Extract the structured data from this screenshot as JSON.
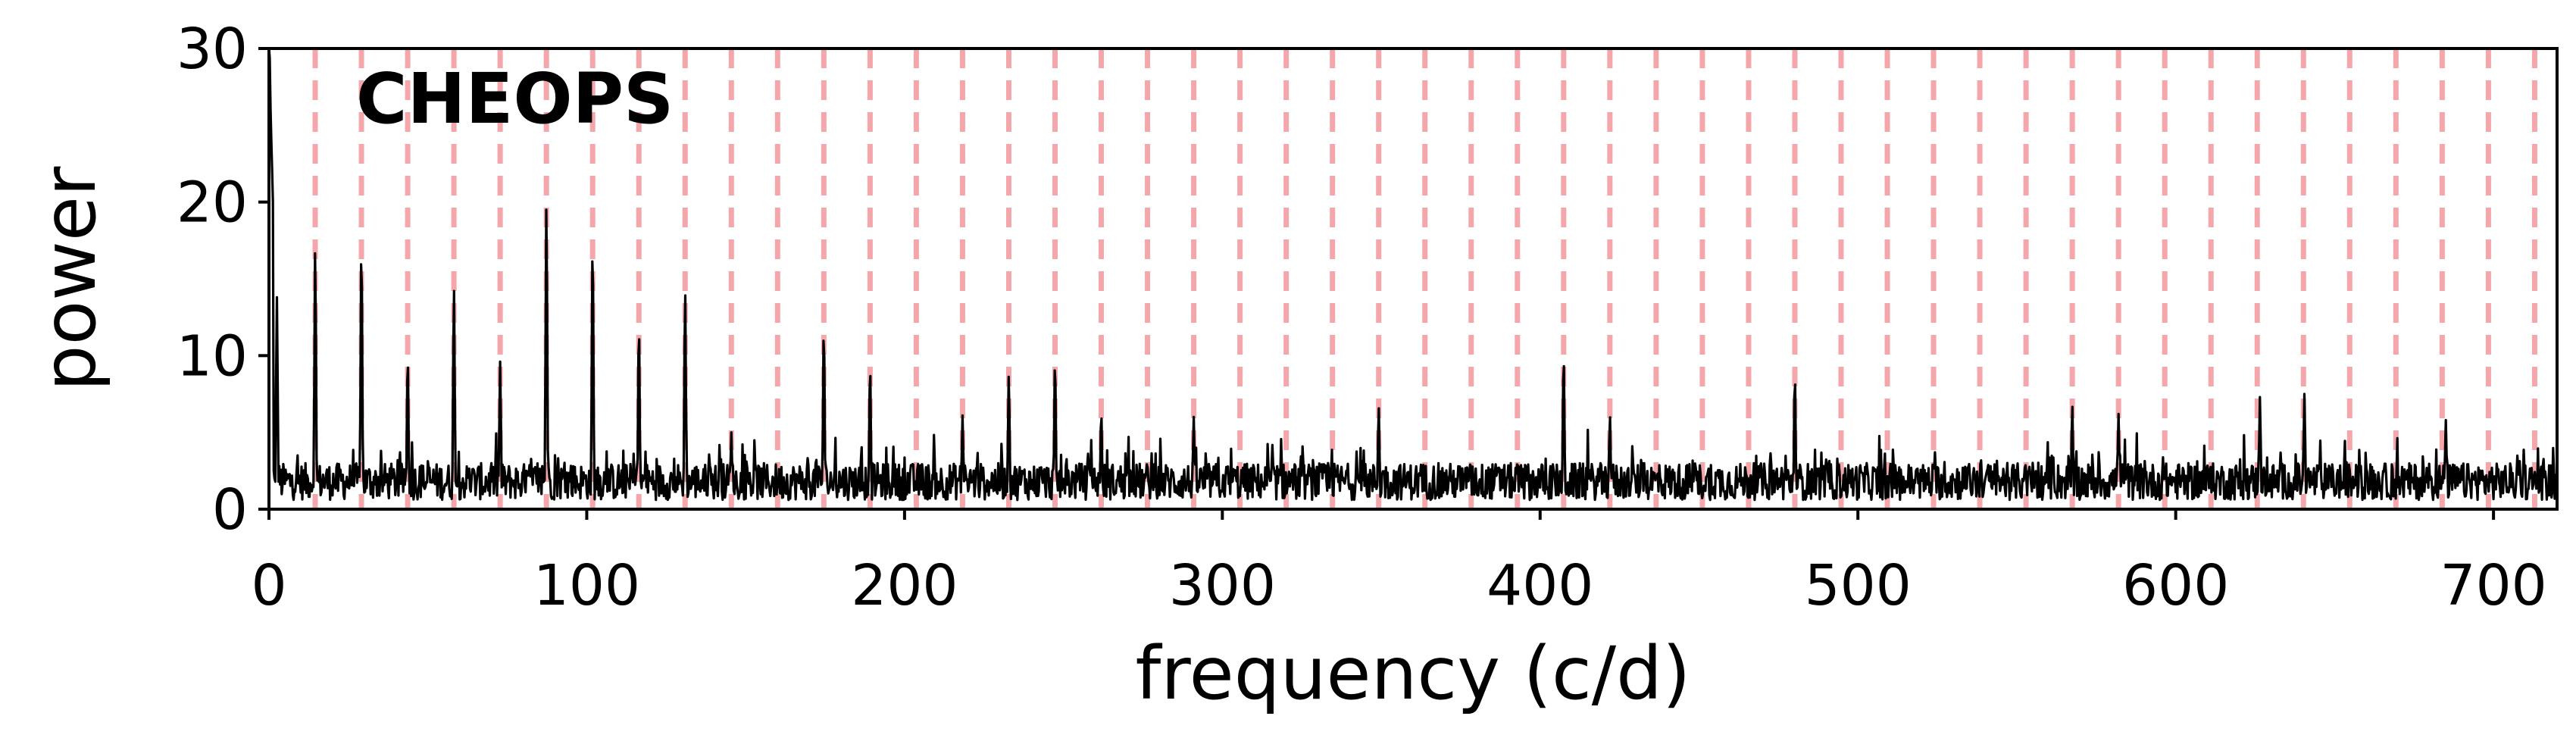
{
  "chart_data": {
    "type": "line",
    "xlabel": "frequency (c/d)",
    "ylabel": "power",
    "annotation": "CHEOPS",
    "xlim": [
      0,
      720
    ],
    "ylim": [
      0,
      30
    ],
    "xticks": [
      0,
      100,
      200,
      300,
      400,
      500,
      600,
      700
    ],
    "yticks": [
      0,
      10,
      20,
      30
    ],
    "grid": false,
    "colors": {
      "line": "#000000",
      "harmonic_lines": "#f4a6aa"
    },
    "harmonic_spacing": 14.55,
    "peaks": [
      {
        "x": 0.3,
        "y": 30
      },
      {
        "x": 2.5,
        "y": 13.8
      },
      {
        "x": 14.55,
        "y": 17
      },
      {
        "x": 29.1,
        "y": 17.3
      },
      {
        "x": 43.65,
        "y": 10
      },
      {
        "x": 58.2,
        "y": 14.5
      },
      {
        "x": 72.75,
        "y": 9.6
      },
      {
        "x": 87.3,
        "y": 19.9
      },
      {
        "x": 101.85,
        "y": 17.5
      },
      {
        "x": 116.4,
        "y": 12
      },
      {
        "x": 130.95,
        "y": 14.2
      },
      {
        "x": 145.5,
        "y": 5.0
      },
      {
        "x": 174.6,
        "y": 11.9
      },
      {
        "x": 189.15,
        "y": 9.4
      },
      {
        "x": 218.25,
        "y": 6.1
      },
      {
        "x": 232.8,
        "y": 8.8
      },
      {
        "x": 247.35,
        "y": 9.8
      },
      {
        "x": 261.9,
        "y": 6.4
      },
      {
        "x": 291.0,
        "y": 6.0
      },
      {
        "x": 349.2,
        "y": 6.7
      },
      {
        "x": 407.4,
        "y": 10.1
      },
      {
        "x": 421.95,
        "y": 6.1
      },
      {
        "x": 480.15,
        "y": 8.8
      },
      {
        "x": 567.45,
        "y": 6.8
      },
      {
        "x": 582.0,
        "y": 6.2
      },
      {
        "x": 626.5,
        "y": 7.3
      },
      {
        "x": 640.5,
        "y": 7.5
      },
      {
        "x": 685.0,
        "y": 5.8
      }
    ]
  }
}
